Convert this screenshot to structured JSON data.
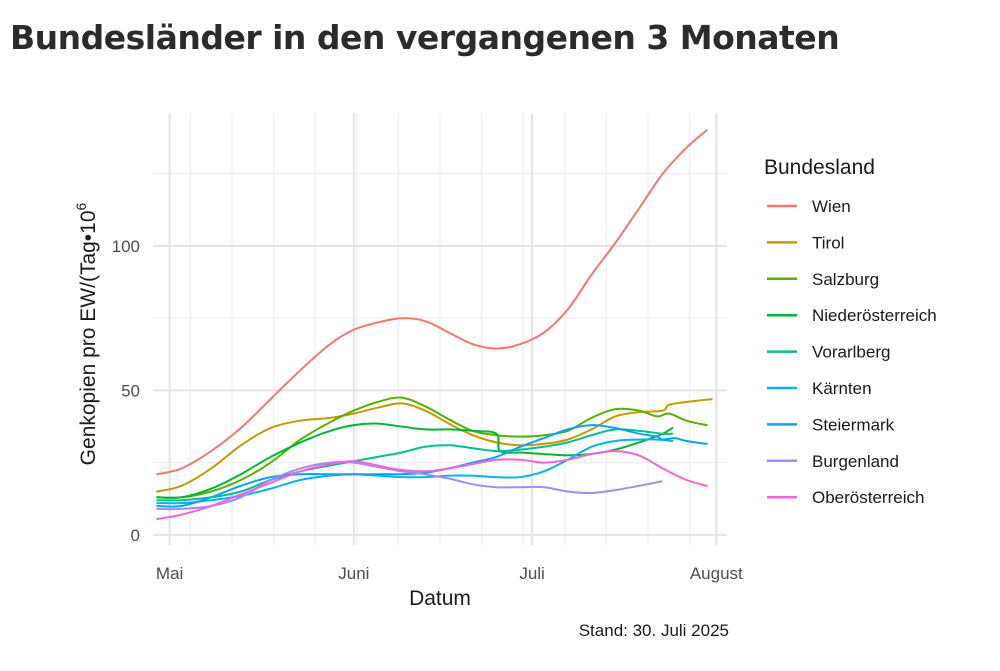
{
  "title": "Bundesländer in den vergangenen 3 Monaten",
  "caption": "Stand: 30. Juli 2025",
  "chart_data": {
    "type": "line",
    "title": "Bundesländer in den vergangenen 3 Monaten",
    "xlabel": "Datum",
    "ylabel": "Genkopien pro EW/(Tag•",
    "ylabel_power_base": "10",
    "ylabel_power_exp": "6",
    "x_unit": "day of year 2025",
    "xlim": [
      118.2,
      214.8
    ],
    "ylim": [
      -3.5,
      146
    ],
    "x_ticks": [
      {
        "label": "Mai",
        "value": 121
      },
      {
        "label": "Juni",
        "value": 152
      },
      {
        "label": "Juli",
        "value": 182
      },
      {
        "label": "August",
        "value": 213
      }
    ],
    "y_ticks": [
      {
        "label": "0",
        "value": 0
      },
      {
        "label": "50",
        "value": 50
      },
      {
        "label": "100",
        "value": 100
      }
    ],
    "legend_title": "Bundesland",
    "legend_position": "right",
    "grid": true,
    "series": [
      {
        "name": "Wien",
        "color": "#F8766D",
        "x": [
          118.9,
          123,
          128,
          133,
          138,
          143,
          148,
          152,
          156,
          160,
          164,
          168,
          172,
          176,
          180,
          184,
          188,
          192,
          196,
          200,
          204,
          208,
          211.4
        ],
        "y": [
          21,
          23,
          29,
          37,
          47,
          57,
          66,
          71,
          73.5,
          75,
          74,
          70,
          66,
          64.5,
          66,
          70,
          78,
          90,
          101,
          113,
          125,
          134,
          140
        ]
      },
      {
        "name": "Tirol",
        "color": "#C49A00",
        "x": [
          118.9,
          123,
          128,
          133,
          138,
          143,
          148,
          152,
          156,
          160,
          164,
          168,
          172,
          176,
          180,
          184,
          188,
          192,
          196,
          200,
          204,
          205,
          208,
          212.2
        ],
        "y": [
          15,
          17,
          23,
          31,
          37,
          39.5,
          40.5,
          42,
          44,
          45.5,
          43,
          38.5,
          34.5,
          32,
          31,
          31.5,
          33,
          36.5,
          41,
          42.5,
          43,
          45,
          46,
          47
        ]
      },
      {
        "name": "Salzburg",
        "color": "#53B400",
        "x": [
          118.9,
          123,
          128,
          133,
          138,
          143,
          148,
          152,
          156,
          160,
          164,
          168,
          172,
          176,
          180,
          184,
          188,
          192,
          196,
          200,
          203,
          205,
          208,
          211.4
        ],
        "y": [
          13,
          13,
          15,
          19,
          25,
          33,
          39,
          43,
          46,
          47.5,
          44.5,
          40,
          36,
          34.5,
          34,
          34.5,
          36,
          40.5,
          43.5,
          43,
          41,
          42,
          39.5,
          38
        ]
      },
      {
        "name": "Niederösterreich",
        "color": "#00B634",
        "x": [
          118.9,
          123,
          128,
          133,
          138,
          143,
          148,
          152,
          156,
          160,
          164,
          168,
          172,
          176,
          176.6,
          180,
          184,
          188,
          192,
          196,
          200,
          204,
          205.6
        ],
        "y": [
          13,
          13,
          16,
          21,
          27,
          32,
          36,
          38,
          38.5,
          37.5,
          36.5,
          36.5,
          36,
          35,
          29,
          28.5,
          28,
          27.5,
          28,
          29.5,
          32,
          35,
          37
        ]
      },
      {
        "name": "Vorarlberg",
        "color": "#00C094",
        "x": [
          118.9,
          123,
          128,
          133,
          138,
          143,
          148,
          152,
          156,
          160,
          164,
          168,
          172,
          176,
          180,
          184,
          188,
          192,
          196,
          200,
          204,
          205.6
        ],
        "y": [
          12,
          12,
          13,
          15,
          19,
          22,
          24,
          25.5,
          27,
          28.5,
          30.5,
          31,
          30,
          29,
          29.5,
          30.5,
          32,
          34.5,
          36.5,
          36,
          35,
          35
        ]
      },
      {
        "name": "Kärnten",
        "color": "#00B6EB",
        "x": [
          118.9,
          123,
          128,
          133,
          138,
          143,
          148,
          152,
          156,
          160,
          164,
          168,
          172,
          176,
          180,
          184,
          188,
          192,
          196,
          200,
          203,
          205.6
        ],
        "y": [
          11,
          11,
          12,
          13.5,
          16,
          19,
          20.5,
          21,
          20.5,
          20,
          20,
          20.5,
          20.5,
          20,
          20,
          22,
          26,
          30.5,
          32.5,
          33,
          33,
          32.5
        ]
      },
      {
        "name": "Steiermark",
        "color": "#06A4FF",
        "x": [
          118.9,
          123,
          128,
          133,
          138,
          143,
          148,
          152,
          156,
          160,
          164,
          168,
          172,
          176,
          180,
          184,
          188,
          192,
          196,
          200,
          203,
          204,
          206,
          208,
          211.4
        ],
        "y": [
          10,
          10,
          13,
          17,
          20,
          21,
          21,
          21,
          21,
          21,
          21.5,
          23,
          25,
          27,
          30.5,
          33.5,
          36.5,
          38,
          37,
          35,
          34,
          33,
          33.5,
          32.5,
          31.5
        ]
      },
      {
        "name": "Burgenland",
        "color": "#A58AFF",
        "x": [
          118.9,
          123,
          128,
          133,
          138,
          143,
          148,
          152,
          156,
          160,
          164,
          168,
          172,
          176,
          180,
          184,
          188,
          192,
          196,
          200,
          203.8
        ],
        "y": [
          9,
          9,
          10,
          13,
          19,
          23,
          25,
          25,
          23.5,
          22,
          21,
          19.5,
          17.5,
          16.5,
          16.5,
          16.5,
          15,
          14.5,
          15.5,
          17,
          18.5
        ]
      },
      {
        "name": "Oberösterreich",
        "color": "#FB61D7",
        "x": [
          118.9,
          123,
          128,
          133,
          138,
          143,
          148,
          152,
          156,
          160,
          164,
          168,
          172,
          176,
          180,
          184,
          188,
          192,
          196,
          200,
          204,
          208,
          211.4
        ],
        "y": [
          5.5,
          7,
          10,
          14,
          18,
          22,
          24.5,
          25.5,
          24,
          22.5,
          22,
          23,
          24.5,
          26,
          26,
          25,
          26,
          28,
          29,
          27.5,
          23,
          19,
          17
        ]
      }
    ]
  }
}
